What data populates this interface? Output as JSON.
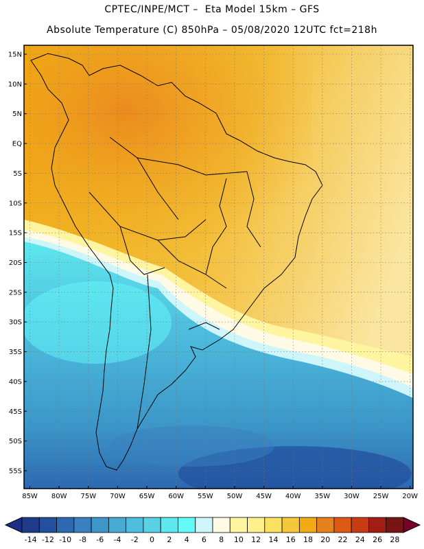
{
  "header": {
    "line1": "CPTEC/INPE/MCT –  Eta Model 15km – GFS",
    "line2": "Absolute Temperature (C) 850hPa – 05/08/2020 12UTC fct=218h"
  },
  "map": {
    "lat_labels": [
      "15N",
      "10N",
      "5N",
      "EQ",
      "5S",
      "10S",
      "15S",
      "20S",
      "25S",
      "30S",
      "35S",
      "40S",
      "45S",
      "50S",
      "55S"
    ],
    "lat_values": [
      15,
      10,
      5,
      0,
      -5,
      -10,
      -15,
      -20,
      -25,
      -30,
      -35,
      -40,
      -45,
      -50,
      -55
    ],
    "lon_labels": [
      "85W",
      "80W",
      "75W",
      "70W",
      "65W",
      "60W",
      "55W",
      "50W",
      "45W",
      "40W",
      "35W",
      "30W",
      "25W",
      "20W"
    ],
    "lon_values": [
      -85,
      -80,
      -75,
      -70,
      -65,
      -60,
      -55,
      -50,
      -45,
      -40,
      -35,
      -30,
      -25,
      -20
    ],
    "lat_range": [
      -58,
      16.5
    ],
    "lon_range": [
      -86,
      -19.5
    ]
  },
  "colorbar": {
    "ticks": [
      "-14",
      "-12",
      "-10",
      "-8",
      "-6",
      "-4",
      "-2",
      "0",
      "2",
      "4",
      "6",
      "8",
      "10",
      "12",
      "14",
      "16",
      "18",
      "20",
      "22",
      "24",
      "26",
      "28"
    ],
    "colors": [
      "#1e3c8a",
      "#23509e",
      "#2d68b0",
      "#3a7fc0",
      "#3c96c8",
      "#46aad2",
      "#4ebede",
      "#5ad2e6",
      "#5ee8ee",
      "#64fafa",
      "#cef6fa",
      "#fffae6",
      "#fff5a0",
      "#fff08c",
      "#fae164",
      "#f5c83c",
      "#f0aa14",
      "#e6821e",
      "#dc5a14",
      "#c83c14",
      "#a01e14",
      "#781414"
    ],
    "under_color": "#1e2e86",
    "over_color": "#780028"
  }
}
